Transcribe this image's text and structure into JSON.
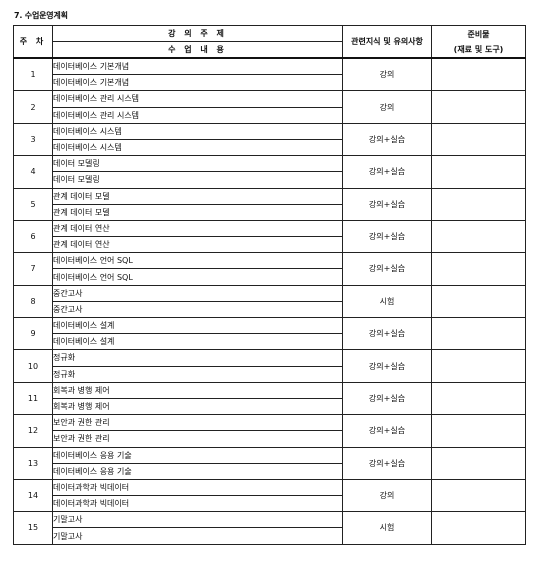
{
  "title": "7. 수업운영계획",
  "headers": {
    "week": "주 차",
    "topic": "강 의 주 제",
    "content": "수 업 내 용",
    "method": "관련지식 및 유의사항",
    "prep_line1": "준비물",
    "prep_line2": "(재료 및 도구)"
  },
  "weeks": [
    {
      "no": "1",
      "topic": "데이터베이스 기본개념",
      "content": "데이터베이스 기본개념",
      "method": "강의",
      "prep": ""
    },
    {
      "no": "2",
      "topic": "데이터베이스 관리 시스템",
      "content": "데이터베이스 관리 시스템",
      "method": "강의",
      "prep": ""
    },
    {
      "no": "3",
      "topic": "데이터베이스 시스템",
      "content": "데이터베이스 시스템",
      "method": "강의+실습",
      "prep": ""
    },
    {
      "no": "4",
      "topic": "데이터 모델링",
      "content": "데이터 모델링",
      "method": "강의+실습",
      "prep": ""
    },
    {
      "no": "5",
      "topic": "관계 데이터 모델",
      "content": "관계 데이터 모델",
      "method": "강의+실습",
      "prep": ""
    },
    {
      "no": "6",
      "topic": "관계 데이터 연산",
      "content": "관계 데이터 연산",
      "method": "강의+실습",
      "prep": ""
    },
    {
      "no": "7",
      "topic": "데이터베이스 언어 SQL",
      "content": "데이터베이스 언어 SQL",
      "method": "강의+실습",
      "prep": ""
    },
    {
      "no": "8",
      "topic": "중간고사",
      "content": "중간고사",
      "method": "시험",
      "prep": ""
    },
    {
      "no": "9",
      "topic": "데이터베이스 설계",
      "content": "데이터베이스 설계",
      "method": "강의+실습",
      "prep": ""
    },
    {
      "no": "10",
      "topic": "정규화",
      "content": "정규화",
      "method": "강의+실습",
      "prep": ""
    },
    {
      "no": "11",
      "topic": "회복과 병행 제어",
      "content": "회복과 병행 제어",
      "method": "강의+실습",
      "prep": ""
    },
    {
      "no": "12",
      "topic": "보안과 권한 관리",
      "content": "보안과 권한 관리",
      "method": "강의+실습",
      "prep": ""
    },
    {
      "no": "13",
      "topic": "데이터베이스 응용 기술",
      "content": "데이터베이스 응용 기술",
      "method": "강의+실습",
      "prep": ""
    },
    {
      "no": "14",
      "topic": "데이터과학과 빅데이터",
      "content": "데이터과학과 빅데이터",
      "method": "강의",
      "prep": ""
    },
    {
      "no": "15",
      "topic": "기말고사",
      "content": "기말고사",
      "method": "시험",
      "prep": ""
    }
  ]
}
